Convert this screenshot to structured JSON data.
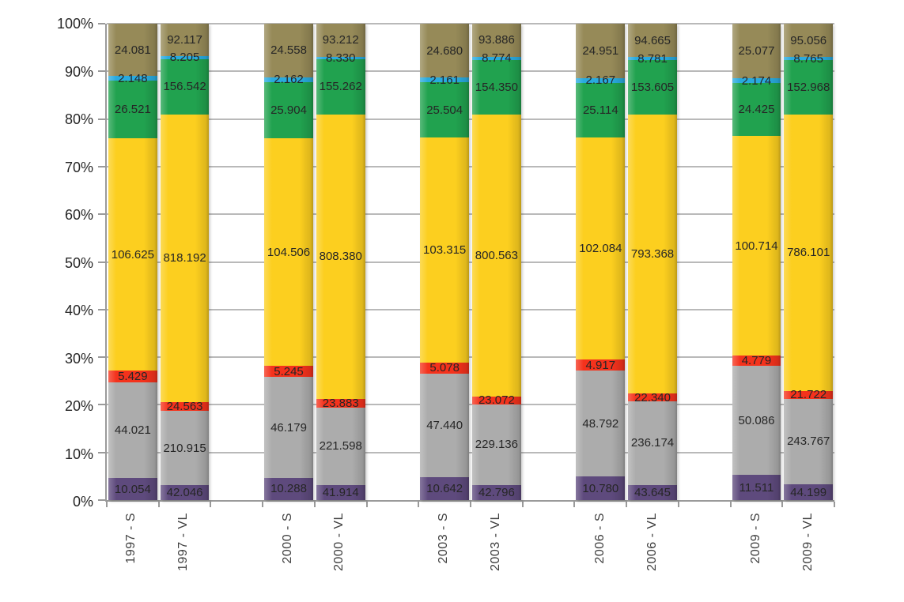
{
  "chart_data": {
    "type": "bar",
    "stacking": "percent_100",
    "title": "",
    "legend": "none",
    "grid": true,
    "categories": [
      "1997 - S",
      "1997 - VL",
      "2000 - S",
      "2000 - VL",
      "2003 - S",
      "2003 - VL",
      "2006 - S",
      "2006 - VL",
      "2009 - S",
      "2009 - VL"
    ],
    "y_axis": {
      "min": 0,
      "max": 100,
      "ticks": [
        "0%",
        "10%",
        "20%",
        "30%",
        "40%",
        "50%",
        "60%",
        "70%",
        "80%",
        "90%",
        "100%"
      ]
    },
    "slot_count": 14,
    "slot_map": [
      0,
      1,
      3,
      4,
      6,
      7,
      9,
      10,
      12,
      13
    ],
    "series": [
      {
        "name": "purple",
        "color": "#5e4a7d",
        "values": [
          "10.054",
          "42.046",
          "10.288",
          "41.914",
          "10.642",
          "42.796",
          "10.780",
          "43.645",
          "11.511",
          "44.199"
        ]
      },
      {
        "name": "gray",
        "color": "#acacac",
        "values": [
          "44.021",
          "210.915",
          "46.179",
          "221.598",
          "47.440",
          "229.136",
          "48.792",
          "236.174",
          "50.086",
          "243.767"
        ]
      },
      {
        "name": "red",
        "color": "#f4321c",
        "values": [
          "5.429",
          "24.563",
          "5.245",
          "23.883",
          "5.078",
          "23.072",
          "4.917",
          "22.340",
          "4.779",
          "21.722"
        ]
      },
      {
        "name": "yellow",
        "color": "#fccf1f",
        "values": [
          "106.625",
          "818.192",
          "104.506",
          "808.380",
          "103.315",
          "800.563",
          "102.084",
          "793.368",
          "100.714",
          "786.101"
        ]
      },
      {
        "name": "green",
        "color": "#21a24f",
        "values": [
          "26.521",
          "156.542",
          "25.904",
          "155.262",
          "25.504",
          "154.350",
          "25.114",
          "153.605",
          "24.425",
          "152.968"
        ]
      },
      {
        "name": "cyan",
        "color": "#29aadf",
        "values": [
          "2.148",
          "8.205",
          "2.162",
          "8.330",
          "2.161",
          "8.774",
          "2.167",
          "8.781",
          "2.174",
          "8.765"
        ]
      },
      {
        "name": "olive",
        "color": "#968a58",
        "values": [
          "24.081",
          "92.117",
          "24.558",
          "93.212",
          "24.680",
          "93.886",
          "24.951",
          "94.665",
          "25.077",
          "95.056"
        ]
      }
    ]
  }
}
